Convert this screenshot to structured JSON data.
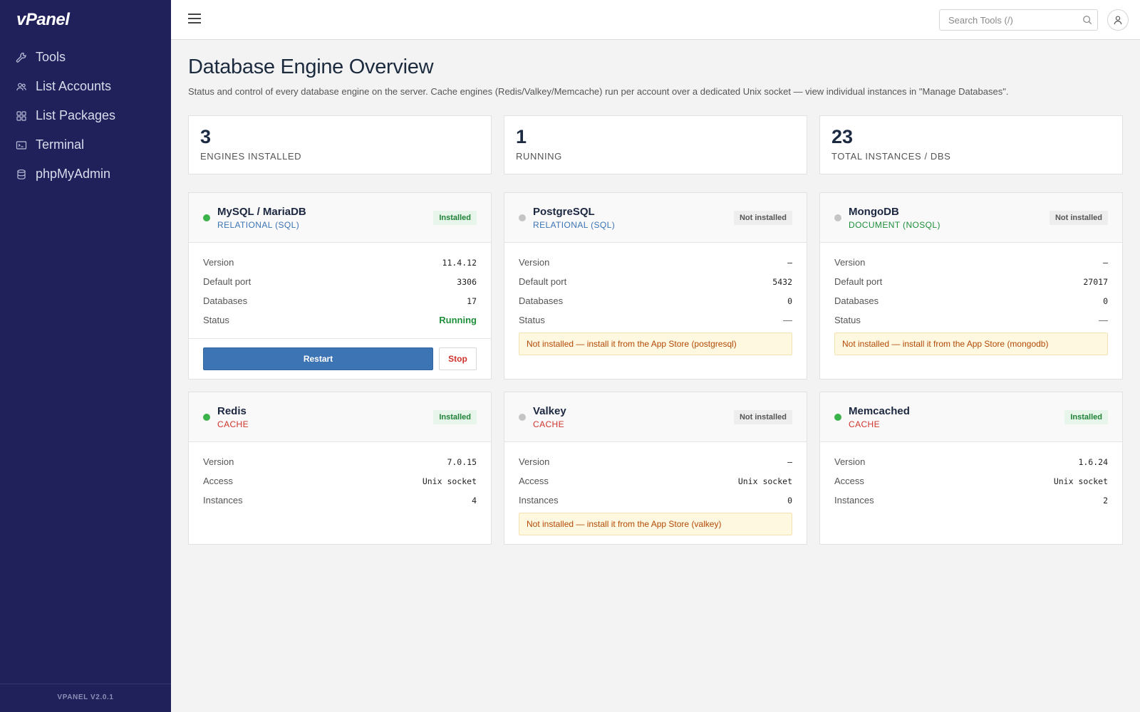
{
  "app": {
    "logo": "vPanel",
    "version": "VPANEL V2.0.1"
  },
  "sidebar": {
    "items": [
      {
        "label": "Tools",
        "icon": "wrench-icon"
      },
      {
        "label": "List Accounts",
        "icon": "users-icon"
      },
      {
        "label": "List Packages",
        "icon": "grid-icon"
      },
      {
        "label": "Terminal",
        "icon": "terminal-icon"
      },
      {
        "label": "phpMyAdmin",
        "icon": "database-icon"
      }
    ]
  },
  "topbar": {
    "search_placeholder": "Search Tools (/)"
  },
  "page": {
    "title": "Database Engine Overview",
    "description": "Status and control of every database engine on the server. Cache engines (Redis/Valkey/Memcache) run per account over a dedicated Unix socket — view individual instances in \"Manage Databases\"."
  },
  "stats": [
    {
      "value": "3",
      "label": "ENGINES INSTALLED"
    },
    {
      "value": "1",
      "label": "RUNNING"
    },
    {
      "value": "23",
      "label": "TOTAL INSTANCES / DBS"
    }
  ],
  "colors": {
    "sidebar_bg": "#20215a",
    "accent_blue": "#3c74b4",
    "status_green": "#3ab44a",
    "cache_red": "#d0342c",
    "relational_blue": "#3c74b4",
    "document_green": "#1f8f3a",
    "notice_text": "#b24a05"
  },
  "engines": [
    {
      "name": "MySQL / MariaDB",
      "type": "RELATIONAL (SQL)",
      "type_color": "#3c74b4",
      "state": "on",
      "badge": "Installed",
      "rows": [
        {
          "label": "Version",
          "value": "11.4.12"
        },
        {
          "label": "Default port",
          "value": "3306"
        },
        {
          "label": "Databases",
          "value": "17"
        },
        {
          "label": "Status",
          "value": "Running"
        }
      ],
      "notice": null,
      "actions": {
        "primary": "Restart",
        "secondary": "Stop"
      }
    },
    {
      "name": "PostgreSQL",
      "type": "RELATIONAL (SQL)",
      "type_color": "#3c74b4",
      "state": "off",
      "badge": "Not installed",
      "rows": [
        {
          "label": "Version",
          "value": "–"
        },
        {
          "label": "Default port",
          "value": "5432"
        },
        {
          "label": "Databases",
          "value": "0"
        },
        {
          "label": "Status",
          "value": "—"
        }
      ],
      "notice": "Not installed — install it from the App Store (postgresql)",
      "actions": null
    },
    {
      "name": "MongoDB",
      "type": "DOCUMENT (NOSQL)",
      "type_color": "#1f8f3a",
      "state": "off",
      "badge": "Not installed",
      "rows": [
        {
          "label": "Version",
          "value": "–"
        },
        {
          "label": "Default port",
          "value": "27017"
        },
        {
          "label": "Databases",
          "value": "0"
        },
        {
          "label": "Status",
          "value": "—"
        }
      ],
      "notice": "Not installed — install it from the App Store (mongodb)",
      "actions": null
    },
    {
      "name": "Redis",
      "type": "CACHE",
      "type_color": "#d0342c",
      "state": "on",
      "badge": "Installed",
      "rows": [
        {
          "label": "Version",
          "value": "7.0.15"
        },
        {
          "label": "Access",
          "value": "Unix socket"
        },
        {
          "label": "Instances",
          "value": "4"
        }
      ],
      "notice": null,
      "actions": null
    },
    {
      "name": "Valkey",
      "type": "CACHE",
      "type_color": "#d0342c",
      "state": "off",
      "badge": "Not installed",
      "rows": [
        {
          "label": "Version",
          "value": "–"
        },
        {
          "label": "Access",
          "value": "Unix socket"
        },
        {
          "label": "Instances",
          "value": "0"
        }
      ],
      "notice": "Not installed — install it from the App Store (valkey)",
      "actions": null
    },
    {
      "name": "Memcached",
      "type": "CACHE",
      "type_color": "#d0342c",
      "state": "on",
      "badge": "Installed",
      "rows": [
        {
          "label": "Version",
          "value": "1.6.24"
        },
        {
          "label": "Access",
          "value": "Unix socket"
        },
        {
          "label": "Instances",
          "value": "2"
        }
      ],
      "notice": null,
      "actions": null
    }
  ]
}
